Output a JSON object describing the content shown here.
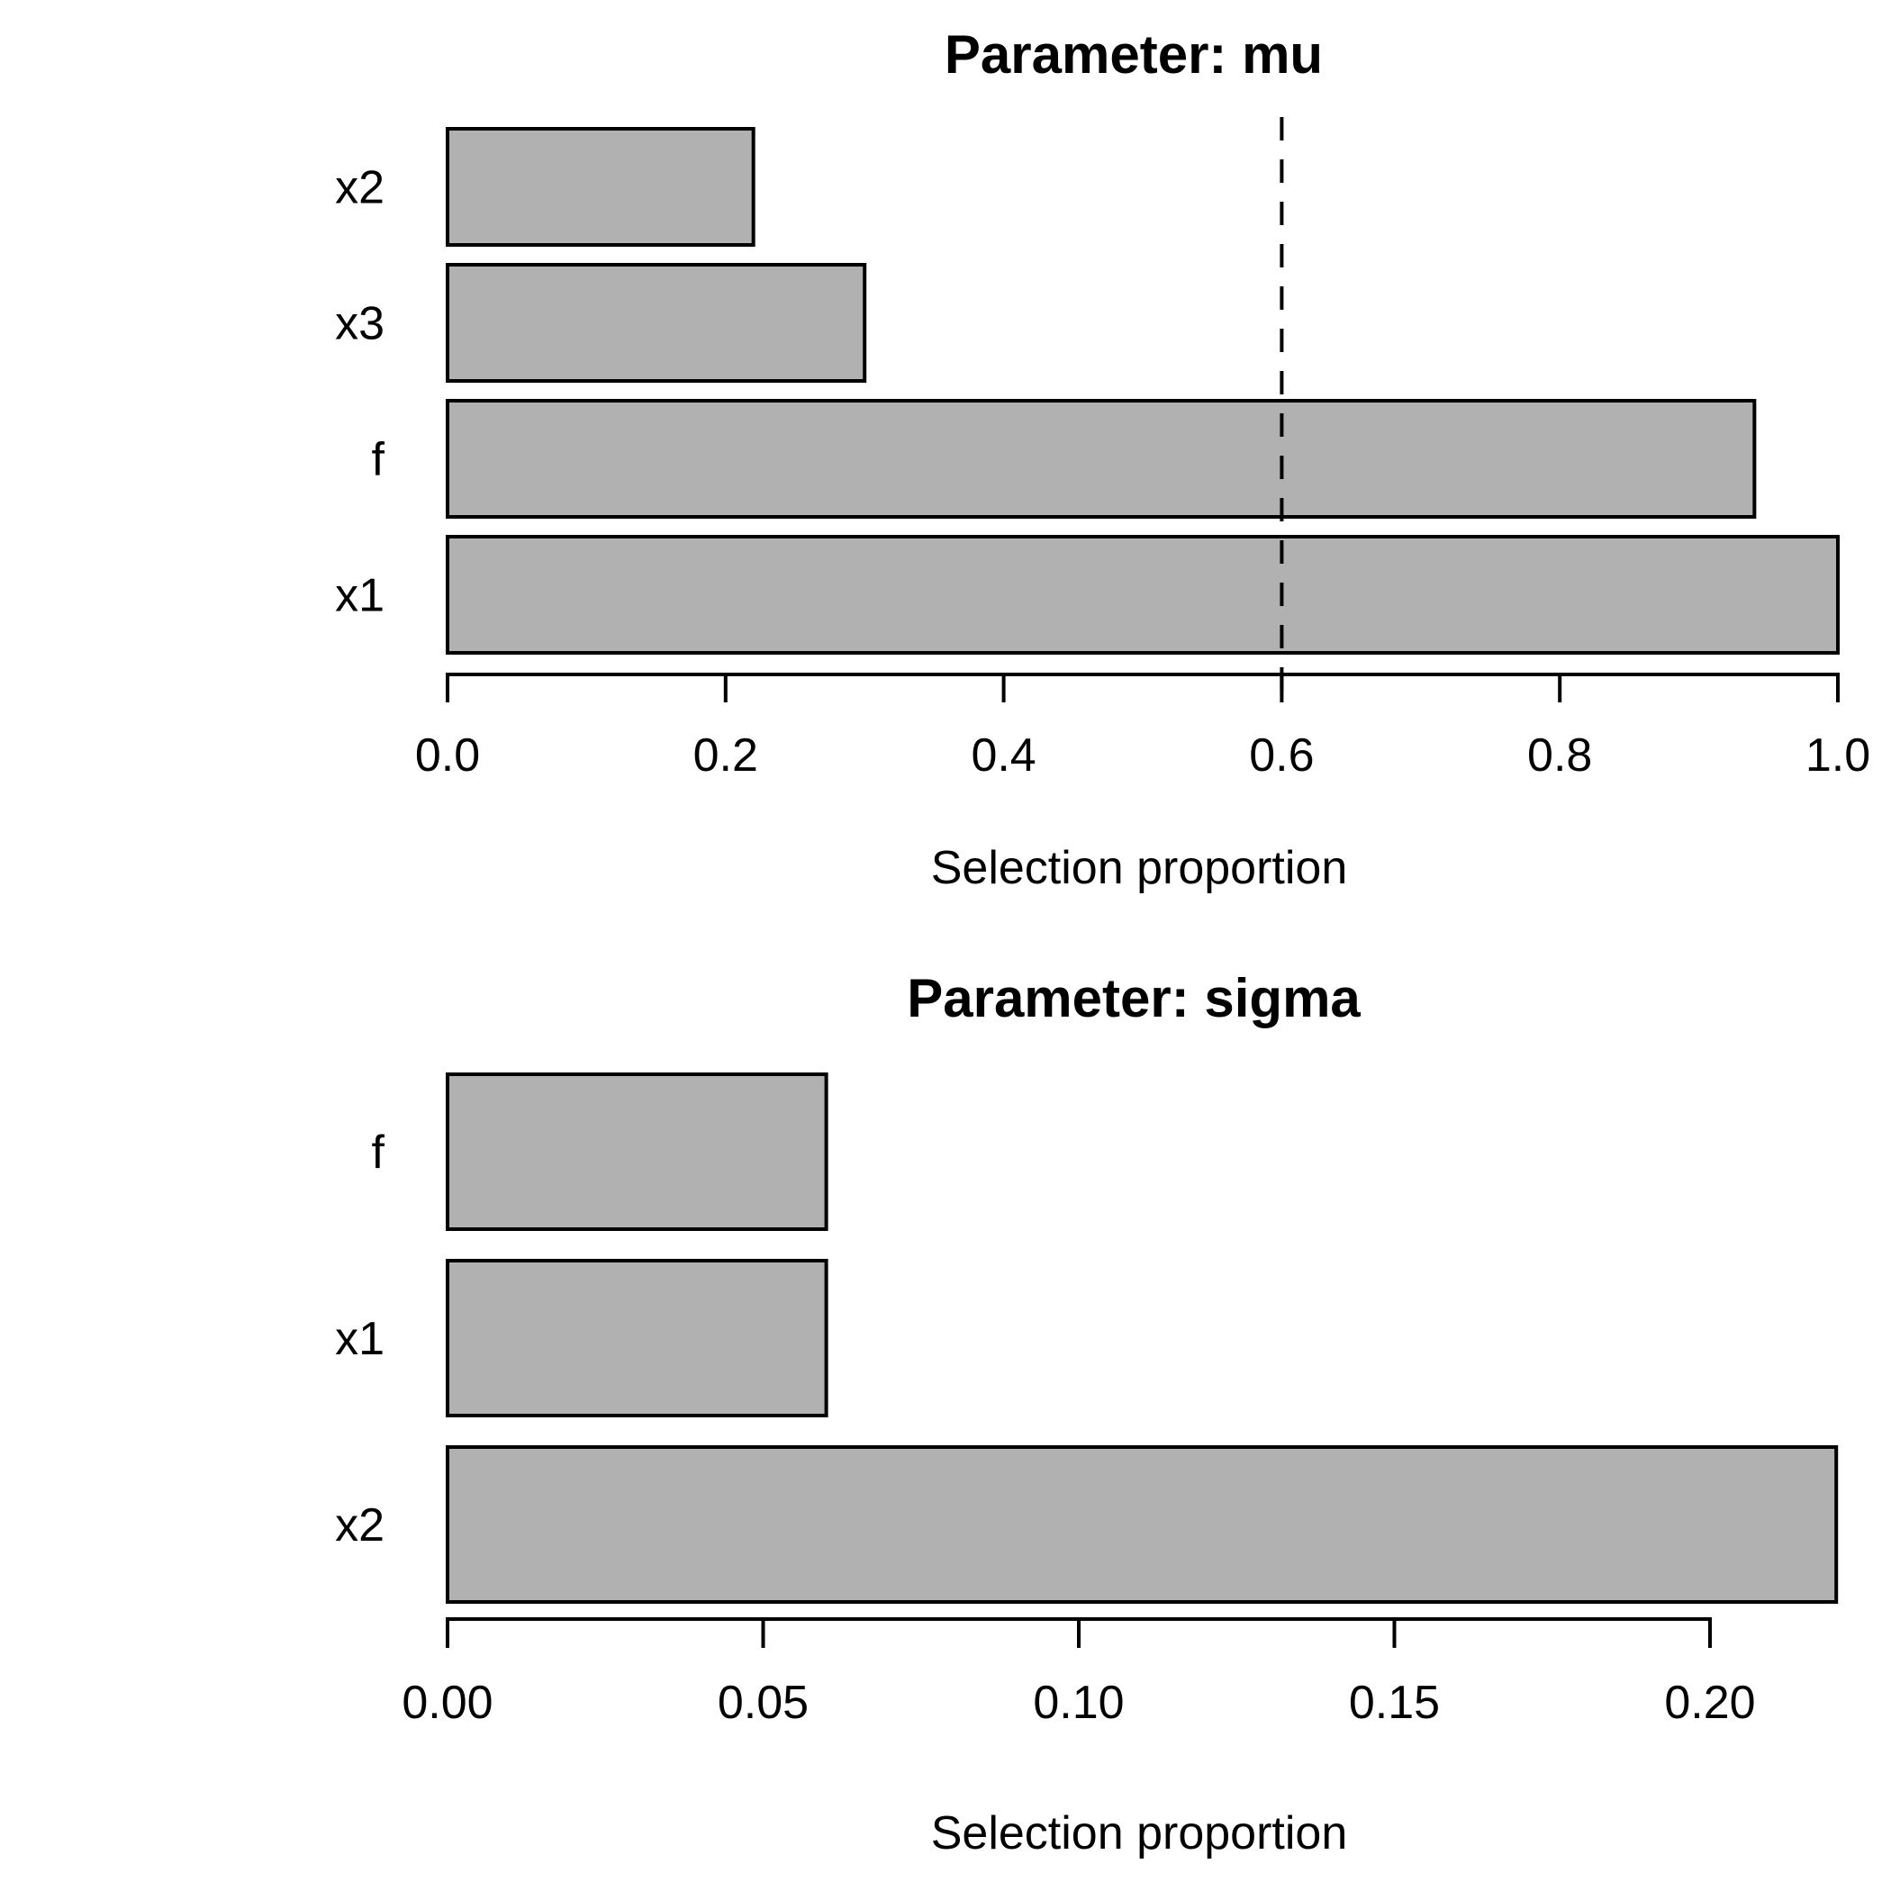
{
  "figure": {
    "background_color": "#ffffff",
    "bar_fill_color": "#b1b1b1",
    "bar_border_color": "#000000",
    "axis_color": "#000000",
    "text_color": "#000000"
  },
  "chart_data": [
    {
      "type": "bar",
      "orientation": "horizontal",
      "title": "Parameter: mu",
      "xlabel": "Selection proportion",
      "ylabel": "",
      "categories_top_to_bottom": [
        "x2",
        "x3",
        "f",
        "x1"
      ],
      "values": [
        0.22,
        0.3,
        0.94,
        1.0
      ],
      "xlim": [
        0,
        1.0
      ],
      "xticks": [
        0.0,
        0.2,
        0.4,
        0.6,
        0.8,
        1.0
      ],
      "xtick_labels": [
        "0.0",
        "0.2",
        "0.4",
        "0.6",
        "0.8",
        "1.0"
      ],
      "threshold_line": {
        "value": 0.6,
        "style": "dashed",
        "color": "#000000"
      },
      "grid": false,
      "legend": "none"
    },
    {
      "type": "bar",
      "orientation": "horizontal",
      "title": "Parameter: sigma",
      "xlabel": "Selection proportion",
      "ylabel": "",
      "categories_top_to_bottom": [
        "f",
        "x1",
        "x2"
      ],
      "values": [
        0.06,
        0.06,
        0.22
      ],
      "xlim": [
        0,
        0.22
      ],
      "xticks": [
        0.0,
        0.05,
        0.1,
        0.15,
        0.2
      ],
      "xtick_labels": [
        "0.00",
        "0.05",
        "0.10",
        "0.15",
        "0.20"
      ],
      "threshold_line": null,
      "grid": false,
      "legend": "none"
    }
  ]
}
